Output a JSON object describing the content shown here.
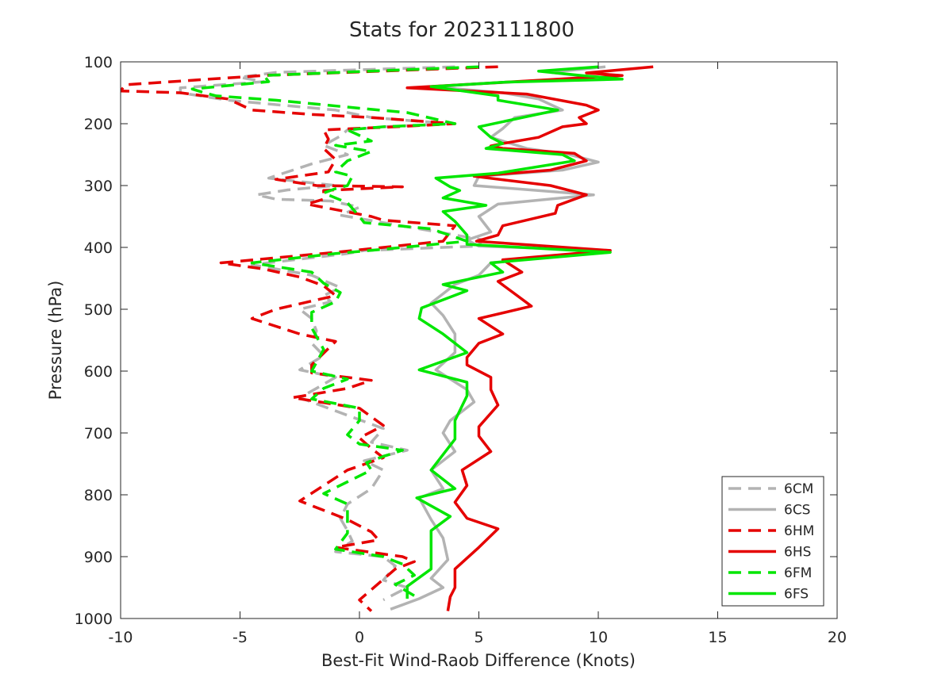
{
  "chart_data": {
    "type": "line",
    "title": "Stats for 2023111800",
    "xlabel": "Best-Fit Wind-Raob Difference (Knots)",
    "ylabel": "Pressure (hPa)",
    "xlim": [
      -10,
      20
    ],
    "ylim": [
      1000,
      100
    ],
    "y_reversed": true,
    "xticks": [
      -10,
      -5,
      0,
      5,
      10,
      15,
      20
    ],
    "yticks": [
      100,
      200,
      300,
      400,
      500,
      600,
      700,
      800,
      900,
      1000
    ],
    "grid": false,
    "legend_position": "bottom-right",
    "series": [
      {
        "name": "6CM",
        "color": "#b3b3b3",
        "dash": "dashed",
        "points": [
          [
            4.0,
            108
          ],
          [
            -3.5,
            117
          ],
          [
            -5.0,
            125
          ],
          [
            -4.0,
            132
          ],
          [
            -7.5,
            142
          ],
          [
            -7.5,
            150
          ],
          [
            -5.5,
            162
          ],
          [
            -1.0,
            178
          ],
          [
            0.5,
            190
          ],
          [
            3.8,
            200
          ],
          [
            1.0,
            205
          ],
          [
            -0.5,
            210
          ],
          [
            -0.8,
            220
          ],
          [
            -1.5,
            235
          ],
          [
            -0.5,
            250
          ],
          [
            -2.0,
            265
          ],
          [
            -3.8,
            288
          ],
          [
            -1.0,
            300
          ],
          [
            -3.0,
            307
          ],
          [
            -4.3,
            315
          ],
          [
            -3.5,
            322
          ],
          [
            -1.2,
            325
          ],
          [
            0.0,
            335
          ],
          [
            -0.8,
            348
          ],
          [
            5.2,
            388
          ],
          [
            4.9,
            398
          ],
          [
            0.2,
            405
          ],
          [
            -0.5,
            410
          ],
          [
            -4.5,
            428
          ],
          [
            -2.0,
            445
          ],
          [
            -0.8,
            465
          ],
          [
            -1.5,
            478
          ],
          [
            -1.2,
            488
          ],
          [
            -2.5,
            500
          ],
          [
            -2.0,
            515
          ],
          [
            -1.8,
            535
          ],
          [
            -2.0,
            555
          ],
          [
            -1.5,
            575
          ],
          [
            -2.5,
            598
          ],
          [
            -1.0,
            610
          ],
          [
            -1.8,
            628
          ],
          [
            -2.5,
            643
          ],
          [
            1.0,
            693
          ],
          [
            0.5,
            715
          ],
          [
            2.0,
            728
          ],
          [
            0.2,
            745
          ],
          [
            1.0,
            760
          ],
          [
            0.5,
            790
          ],
          [
            -0.5,
            815
          ],
          [
            -0.8,
            838
          ],
          [
            -0.5,
            858
          ],
          [
            -0.3,
            875
          ],
          [
            -1.0,
            892
          ],
          [
            1.0,
            900
          ],
          [
            1.5,
            915
          ],
          [
            1.0,
            938
          ],
          [
            2.0,
            950
          ],
          [
            1.0,
            970
          ]
        ]
      },
      {
        "name": "6CS",
        "color": "#b3b3b3",
        "dash": "solid",
        "points": [
          [
            10.3,
            108
          ],
          [
            8.0,
            117
          ],
          [
            9.8,
            125
          ],
          [
            3.0,
            140
          ],
          [
            6.0,
            150
          ],
          [
            7.5,
            160
          ],
          [
            8.5,
            178
          ],
          [
            6.5,
            190
          ],
          [
            6.0,
            208
          ],
          [
            5.5,
            222
          ],
          [
            7.0,
            240
          ],
          [
            8.8,
            250
          ],
          [
            10.0,
            262
          ],
          [
            8.5,
            275
          ],
          [
            5.0,
            285
          ],
          [
            4.8,
            300
          ],
          [
            9.8,
            315
          ],
          [
            5.8,
            330
          ],
          [
            5.0,
            350
          ],
          [
            5.5,
            375
          ],
          [
            4.5,
            388
          ],
          [
            5.0,
            398
          ],
          [
            10.5,
            405
          ],
          [
            5.5,
            425
          ],
          [
            5.0,
            445
          ],
          [
            4.0,
            460
          ],
          [
            3.0,
            490
          ],
          [
            3.5,
            510
          ],
          [
            4.0,
            540
          ],
          [
            4.0,
            570
          ],
          [
            3.2,
            598
          ],
          [
            4.5,
            630
          ],
          [
            4.8,
            650
          ],
          [
            3.8,
            680
          ],
          [
            3.5,
            700
          ],
          [
            4.0,
            730
          ],
          [
            3.0,
            760
          ],
          [
            3.5,
            790
          ],
          [
            2.5,
            805
          ],
          [
            3.0,
            840
          ],
          [
            3.5,
            870
          ],
          [
            3.7,
            905
          ],
          [
            3.0,
            935
          ],
          [
            3.5,
            950
          ],
          [
            2.5,
            968
          ],
          [
            1.3,
            985
          ]
        ]
      },
      {
        "name": "6HM",
        "color": "#e50000",
        "dash": "dashed",
        "points": [
          [
            5.8,
            108
          ],
          [
            -4.0,
            122
          ],
          [
            -9.8,
            137
          ],
          [
            -10.0,
            147
          ],
          [
            -7.5,
            150
          ],
          [
            -5.5,
            160
          ],
          [
            -4.5,
            178
          ],
          [
            -2.0,
            185
          ],
          [
            0.5,
            190
          ],
          [
            4.0,
            200
          ],
          [
            1.5,
            205
          ],
          [
            -1.5,
            210
          ],
          [
            -1.3,
            225
          ],
          [
            -1.5,
            240
          ],
          [
            -1.0,
            258
          ],
          [
            -1.3,
            278
          ],
          [
            -3.5,
            290
          ],
          [
            -1.8,
            300
          ],
          [
            1.8,
            302
          ],
          [
            -1.5,
            308
          ],
          [
            -1.5,
            322
          ],
          [
            -2.2,
            330
          ],
          [
            0.5,
            350
          ],
          [
            1.0,
            356
          ],
          [
            4.0,
            365
          ],
          [
            3.5,
            390
          ],
          [
            -1.0,
            408
          ],
          [
            -5.8,
            425
          ],
          [
            -4.0,
            435
          ],
          [
            -2.5,
            448
          ],
          [
            -1.5,
            462
          ],
          [
            -1.0,
            478
          ],
          [
            -3.5,
            500
          ],
          [
            -4.5,
            515
          ],
          [
            -2.5,
            540
          ],
          [
            -1.0,
            552
          ],
          [
            -2.0,
            590
          ],
          [
            -2.0,
            603
          ],
          [
            0.5,
            615
          ],
          [
            -0.5,
            628
          ],
          [
            -2.8,
            643
          ],
          [
            0.0,
            660
          ],
          [
            1.0,
            688
          ],
          [
            0.0,
            708
          ],
          [
            0.5,
            725
          ],
          [
            1.0,
            740
          ],
          [
            -0.5,
            760
          ],
          [
            -2.5,
            810
          ],
          [
            -0.5,
            840
          ],
          [
            0.5,
            860
          ],
          [
            0.8,
            873
          ],
          [
            -1.0,
            885
          ],
          [
            1.8,
            900
          ],
          [
            2.3,
            908
          ],
          [
            1.5,
            920
          ],
          [
            0.0,
            970
          ],
          [
            0.5,
            988
          ]
        ]
      },
      {
        "name": "6HS",
        "color": "#e50000",
        "dash": "solid",
        "points": [
          [
            12.3,
            108
          ],
          [
            9.5,
            118
          ],
          [
            11.0,
            122
          ],
          [
            2.0,
            142
          ],
          [
            7.0,
            152
          ],
          [
            9.5,
            170
          ],
          [
            10.0,
            178
          ],
          [
            9.2,
            190
          ],
          [
            9.5,
            200
          ],
          [
            8.5,
            205
          ],
          [
            7.5,
            222
          ],
          [
            6.0,
            232
          ],
          [
            5.5,
            236
          ],
          [
            6.0,
            240
          ],
          [
            9.0,
            248
          ],
          [
            9.5,
            260
          ],
          [
            8.0,
            275
          ],
          [
            4.8,
            285
          ],
          [
            8.0,
            300
          ],
          [
            9.5,
            315
          ],
          [
            8.3,
            332
          ],
          [
            8.2,
            345
          ],
          [
            6.0,
            365
          ],
          [
            5.8,
            380
          ],
          [
            4.9,
            390
          ],
          [
            10.5,
            405
          ],
          [
            6.0,
            420
          ],
          [
            6.8,
            440
          ],
          [
            5.8,
            455
          ],
          [
            6.5,
            475
          ],
          [
            7.2,
            495
          ],
          [
            5.0,
            515
          ],
          [
            6.0,
            540
          ],
          [
            5.0,
            555
          ],
          [
            4.5,
            578
          ],
          [
            4.5,
            590
          ],
          [
            5.5,
            610
          ],
          [
            5.5,
            630
          ],
          [
            5.8,
            655
          ],
          [
            5.0,
            690
          ],
          [
            5.0,
            705
          ],
          [
            5.5,
            730
          ],
          [
            4.3,
            760
          ],
          [
            4.5,
            785
          ],
          [
            4.0,
            812
          ],
          [
            4.5,
            838
          ],
          [
            5.8,
            855
          ],
          [
            5.0,
            885
          ],
          [
            4.0,
            920
          ],
          [
            4.0,
            950
          ],
          [
            3.8,
            965
          ],
          [
            3.7,
            988
          ]
        ]
      },
      {
        "name": "6FM",
        "color": "#00e600",
        "dash": "dashed",
        "points": [
          [
            5.0,
            108
          ],
          [
            -4.0,
            122
          ],
          [
            -3.8,
            132
          ],
          [
            -7.0,
            144
          ],
          [
            -6.5,
            150
          ],
          [
            -6.0,
            155
          ],
          [
            -3.5,
            162
          ],
          [
            0.0,
            175
          ],
          [
            2.0,
            182
          ],
          [
            4.0,
            200
          ],
          [
            1.0,
            205
          ],
          [
            -0.5,
            210
          ],
          [
            0.5,
            228
          ],
          [
            -1.0,
            235
          ],
          [
            0.5,
            245
          ],
          [
            -0.5,
            260
          ],
          [
            -1.0,
            278
          ],
          [
            -0.3,
            285
          ],
          [
            -0.5,
            300
          ],
          [
            -1.0,
            305
          ],
          [
            -1.5,
            312
          ],
          [
            -0.5,
            328
          ],
          [
            0.0,
            350
          ],
          [
            0.2,
            360
          ],
          [
            3.0,
            370
          ],
          [
            4.5,
            390
          ],
          [
            1.0,
            403
          ],
          [
            -1.0,
            410
          ],
          [
            -4.5,
            425
          ],
          [
            -2.0,
            440
          ],
          [
            -1.5,
            458
          ],
          [
            -0.8,
            473
          ],
          [
            -1.0,
            488
          ],
          [
            -2.0,
            505
          ],
          [
            -2.0,
            530
          ],
          [
            -1.5,
            565
          ],
          [
            -2.0,
            600
          ],
          [
            -0.5,
            613
          ],
          [
            -1.5,
            628
          ],
          [
            -2.0,
            645
          ],
          [
            0.0,
            660
          ],
          [
            0.0,
            680
          ],
          [
            -0.5,
            703
          ],
          [
            0.0,
            718
          ],
          [
            1.8,
            728
          ],
          [
            1.0,
            738
          ],
          [
            0.3,
            748
          ],
          [
            0.5,
            760
          ],
          [
            -1.5,
            798
          ],
          [
            -0.5,
            815
          ],
          [
            -0.5,
            862
          ],
          [
            -1.0,
            888
          ],
          [
            1.0,
            900
          ],
          [
            1.8,
            912
          ],
          [
            2.3,
            930
          ],
          [
            1.5,
            945
          ],
          [
            2.5,
            968
          ]
        ]
      },
      {
        "name": "6FS",
        "color": "#00e600",
        "dash": "solid",
        "points": [
          [
            10.0,
            108
          ],
          [
            7.5,
            115
          ],
          [
            9.3,
            122
          ],
          [
            11.0,
            128
          ],
          [
            6.0,
            133
          ],
          [
            3.0,
            140
          ],
          [
            5.8,
            155
          ],
          [
            5.8,
            162
          ],
          [
            8.3,
            178
          ],
          [
            5.0,
            205
          ],
          [
            5.5,
            222
          ],
          [
            6.0,
            232
          ],
          [
            5.3,
            240
          ],
          [
            8.5,
            250
          ],
          [
            9.0,
            260
          ],
          [
            5.8,
            280
          ],
          [
            3.2,
            288
          ],
          [
            3.8,
            302
          ],
          [
            4.2,
            308
          ],
          [
            3.5,
            320
          ],
          [
            5.3,
            332
          ],
          [
            3.5,
            342
          ],
          [
            4.0,
            358
          ],
          [
            4.5,
            380
          ],
          [
            4.5,
            395
          ],
          [
            10.5,
            408
          ],
          [
            5.5,
            425
          ],
          [
            6.0,
            440
          ],
          [
            3.5,
            460
          ],
          [
            4.5,
            470
          ],
          [
            2.6,
            498
          ],
          [
            2.5,
            515
          ],
          [
            3.5,
            540
          ],
          [
            4.5,
            570
          ],
          [
            2.5,
            598
          ],
          [
            4.5,
            618
          ],
          [
            4.5,
            640
          ],
          [
            4.0,
            680
          ],
          [
            4.0,
            710
          ],
          [
            3.0,
            760
          ],
          [
            4.0,
            790
          ],
          [
            2.4,
            805
          ],
          [
            3.8,
            835
          ],
          [
            3.0,
            858
          ],
          [
            3.0,
            920
          ],
          [
            2.0,
            948
          ],
          [
            2.0,
            968
          ]
        ]
      }
    ]
  }
}
